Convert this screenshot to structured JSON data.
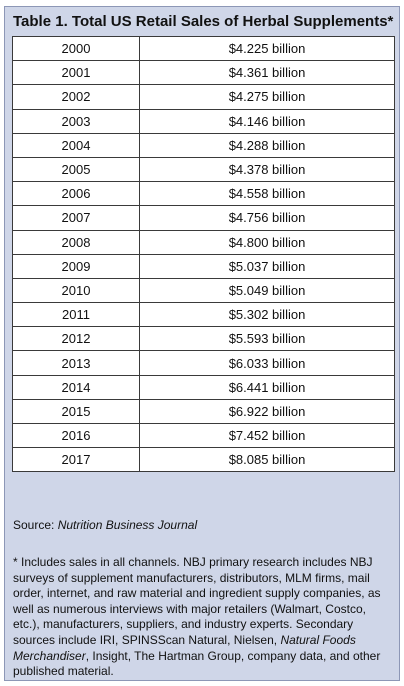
{
  "title": "Table 1. Total US Retail Sales of Herbal Supplements*",
  "rows": [
    {
      "year": "2000",
      "value": "$4.225 billion"
    },
    {
      "year": "2001",
      "value": "$4.361 billion"
    },
    {
      "year": "2002",
      "value": "$4.275 billion"
    },
    {
      "year": "2003",
      "value": "$4.146 billion"
    },
    {
      "year": "2004",
      "value": "$4.288 billion"
    },
    {
      "year": "2005",
      "value": "$4.378 billion"
    },
    {
      "year": "2006",
      "value": "$4.558 billion"
    },
    {
      "year": "2007",
      "value": "$4.756 billion"
    },
    {
      "year": "2008",
      "value": "$4.800 billion"
    },
    {
      "year": "2009",
      "value": "$5.037 billion"
    },
    {
      "year": "2010",
      "value": "$5.049 billion"
    },
    {
      "year": "2011",
      "value": "$5.302 billion"
    },
    {
      "year": "2012",
      "value": "$5.593 billion"
    },
    {
      "year": "2013",
      "value": "$6.033 billion"
    },
    {
      "year": "2014",
      "value": "$6.441 billion"
    },
    {
      "year": "2015",
      "value": "$6.922 billion"
    },
    {
      "year": "2016",
      "value": "$7.452 billion"
    },
    {
      "year": "2017",
      "value": "$8.085 billion"
    }
  ],
  "source": {
    "label": "Source: ",
    "name": "Nutrition Business Journal"
  },
  "footnote": {
    "part1": "* Includes sales in all channels. NBJ primary research includes NBJ surveys of supplement manufacturers, distributors, MLM firms, mail order, internet, and raw material and ingredient supply companies, as well as numerous interviews with major retailers (Walmart, Costco, etc.), manufacturers, suppliers, and industry experts. Secondary sources include IRI, SPINSScan Natural, Nielsen, ",
    "italic": "Natural Foods Merchandiser",
    "part2": ", Insight, The Hartman Group, company data, and other published material."
  },
  "colors": {
    "panel_background": "#cfd6e8",
    "cell_background": "#ffffff",
    "border": "#3a3a3a"
  }
}
